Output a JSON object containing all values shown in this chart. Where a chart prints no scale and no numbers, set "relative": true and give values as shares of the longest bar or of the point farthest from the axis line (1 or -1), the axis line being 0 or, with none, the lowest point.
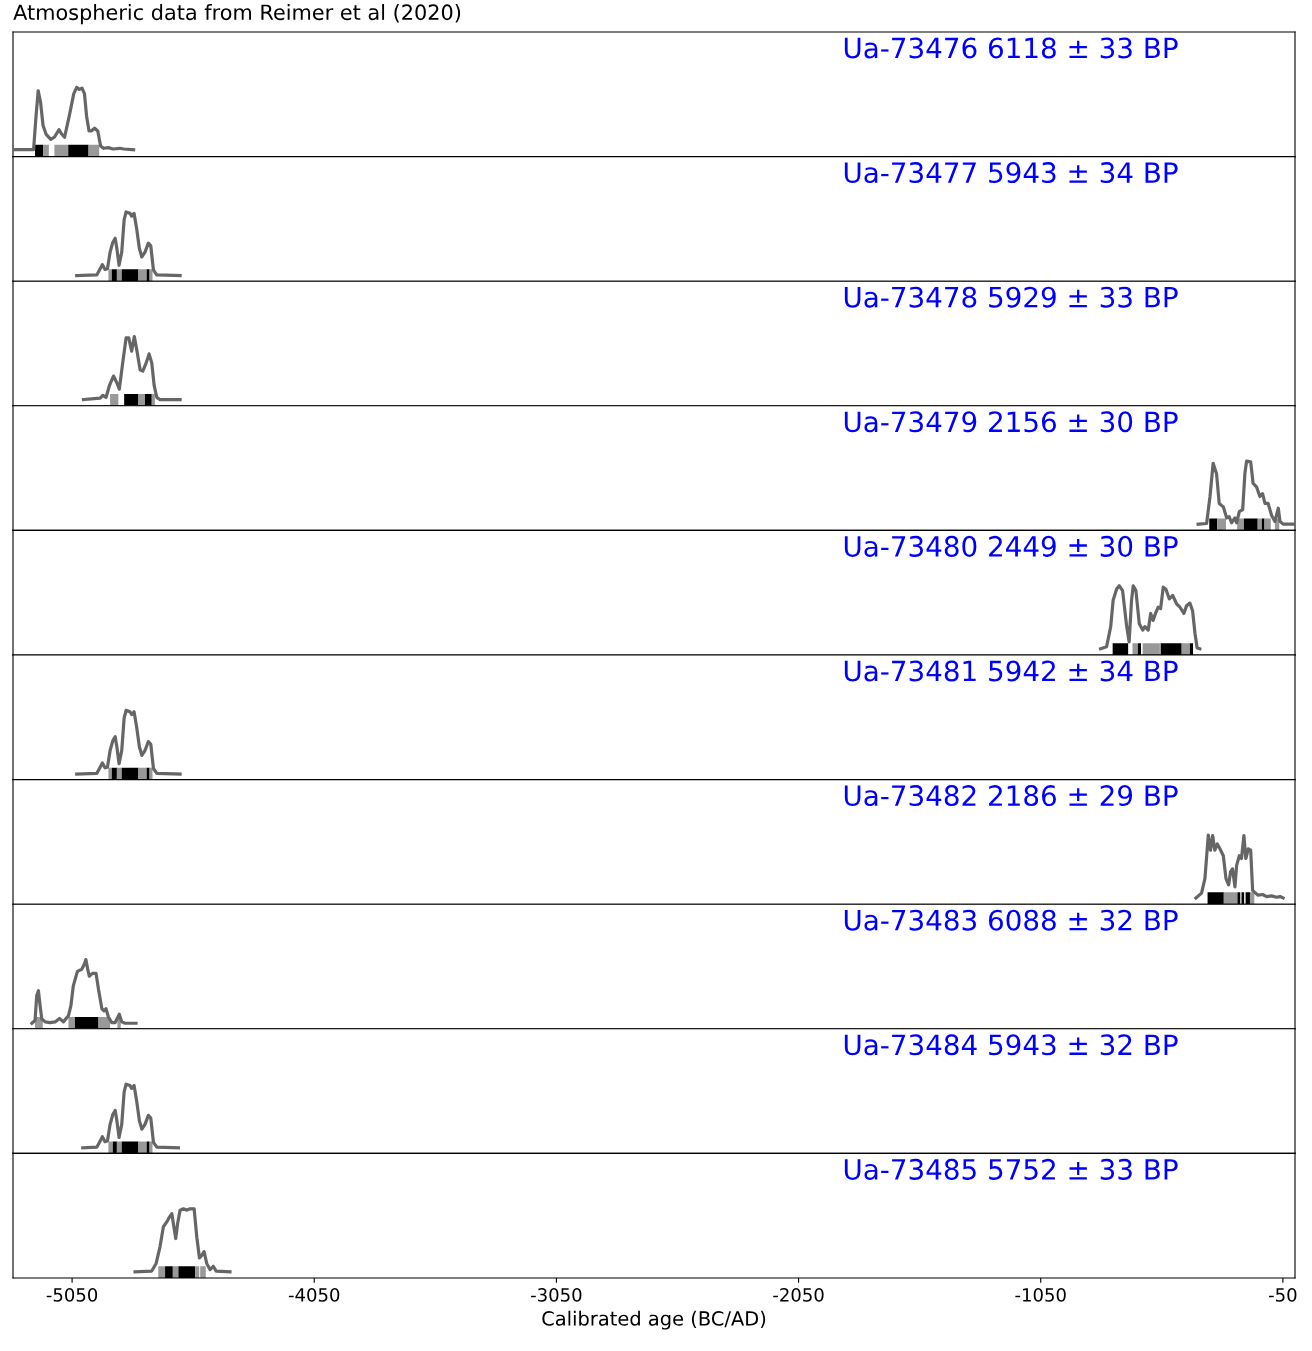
{
  "chart_data": [
    {
      "type": "line",
      "title": "Ua-73476 6118 ± 33 BP",
      "relative": true,
      "color": "#666666",
      "xlim": [
        -5294,
        0
      ],
      "tick_labels": false,
      "annotations": [
        "Atmospheric data from Reimer et al (2020)"
      ],
      "x": [
        -5290,
        -5209,
        -5199,
        -5190,
        -5180,
        -5170,
        -5157,
        -5138,
        -5123,
        -5104,
        -5094,
        -5081,
        -5062,
        -5043,
        -5031,
        -5020,
        -5009,
        -4999,
        -4990,
        -4980,
        -4971,
        -4957,
        -4944,
        -4932,
        -4919,
        -4900,
        -4881,
        -4853,
        -4837,
        -4796
      ],
      "values": [
        0.1,
        0.1,
        0.58,
        0.95,
        0.78,
        0.45,
        0.32,
        0.25,
        0.28,
        0.39,
        0.33,
        0.28,
        0.58,
        0.91,
        1.0,
        0.97,
        0.99,
        0.91,
        0.58,
        0.37,
        0.37,
        0.41,
        0.37,
        0.15,
        0.12,
        0.13,
        0.11,
        0.12,
        0.11,
        0.1
      ],
      "bands": [
        {
          "axis": "x",
          "from": -5203,
          "to": -5170,
          "color": "#000000"
        },
        {
          "axis": "x",
          "from": -5170,
          "to": -5146,
          "color": "#999999"
        },
        {
          "axis": "x",
          "from": -5123,
          "to": -5066,
          "color": "#999999"
        },
        {
          "axis": "x",
          "from": -5066,
          "to": -4982,
          "color": "#000000"
        },
        {
          "axis": "x",
          "from": -4982,
          "to": -4938,
          "color": "#999999"
        }
      ]
    },
    {
      "type": "line",
      "title": "Ua-73477 5943 ± 34 BP",
      "relative": true,
      "color": "#666666",
      "xlim": [
        -5294,
        0
      ],
      "tick_labels": false,
      "x": [
        -5031,
        -4948,
        -4934,
        -4925,
        -4914,
        -4904,
        -4893,
        -4882,
        -4872,
        -4865,
        -4856,
        -4845,
        -4835,
        -4827,
        -4811,
        -4804,
        -4794,
        -4783,
        -4772,
        -4762,
        -4749,
        -4735,
        -4725,
        -4714,
        -4700,
        -4604
      ],
      "values": [
        0.08,
        0.09,
        0.18,
        0.24,
        0.17,
        0.18,
        0.42,
        0.56,
        0.62,
        0.47,
        0.23,
        0.42,
        0.89,
        1.0,
        0.98,
        0.94,
        0.98,
        0.75,
        0.47,
        0.35,
        0.42,
        0.55,
        0.51,
        0.16,
        0.09,
        0.08
      ],
      "bands": [
        {
          "axis": "x",
          "from": -4900,
          "to": -4886,
          "color": "#999999"
        },
        {
          "axis": "x",
          "from": -4886,
          "to": -4865,
          "color": "#000000"
        },
        {
          "axis": "x",
          "from": -4865,
          "to": -4845,
          "color": "#999999"
        },
        {
          "axis": "x",
          "from": -4845,
          "to": -4776,
          "color": "#000000"
        },
        {
          "axis": "x",
          "from": -4776,
          "to": -4742,
          "color": "#999999"
        },
        {
          "axis": "x",
          "from": -4742,
          "to": -4730,
          "color": "#000000"
        },
        {
          "axis": "x",
          "from": -4730,
          "to": -4718,
          "color": "#999999"
        }
      ]
    },
    {
      "type": "line",
      "title": "Ua-73478 5929 ± 33 BP",
      "relative": true,
      "color": "#666666",
      "xlim": [
        -5294,
        0
      ],
      "tick_labels": false,
      "x": [
        -5003,
        -4934,
        -4923,
        -4910,
        -4896,
        -4879,
        -4865,
        -4855,
        -4841,
        -4827,
        -4816,
        -4804,
        -4793,
        -4783,
        -4769,
        -4758,
        -4744,
        -4732,
        -4721,
        -4711,
        -4700,
        -4687,
        -4604
      ],
      "values": [
        0.09,
        0.11,
        0.15,
        0.12,
        0.29,
        0.43,
        0.33,
        0.24,
        0.62,
        0.98,
        0.98,
        0.79,
        1.0,
        0.81,
        0.52,
        0.5,
        0.62,
        0.75,
        0.62,
        0.29,
        0.12,
        0.09,
        0.09
      ],
      "bands": [
        {
          "axis": "x",
          "from": -4893,
          "to": -4859,
          "color": "#999999"
        },
        {
          "axis": "x",
          "from": -4835,
          "to": -4776,
          "color": "#000000"
        },
        {
          "axis": "x",
          "from": -4776,
          "to": -4749,
          "color": "#999999"
        },
        {
          "axis": "x",
          "from": -4749,
          "to": -4721,
          "color": "#000000"
        },
        {
          "axis": "x",
          "from": -4721,
          "to": -4708,
          "color": "#999999"
        }
      ]
    },
    {
      "type": "line",
      "title": "Ua-73479 2156 ± 30 BP",
      "relative": true,
      "color": "#666666",
      "xlim": [
        -5294,
        0
      ],
      "tick_labels": false,
      "x": [
        -400,
        -365,
        -351,
        -338,
        -324,
        -313,
        -296,
        -282,
        -272,
        -262,
        -248,
        -241,
        -230,
        -216,
        -207,
        -200,
        -183,
        -173,
        -159,
        -145,
        -134,
        -124,
        -111,
        -97,
        -83,
        -69,
        -62,
        -49,
        -7
      ],
      "values": [
        0.09,
        0.1,
        0.49,
        0.97,
        0.82,
        0.39,
        0.34,
        0.18,
        0.2,
        0.11,
        0.18,
        0.11,
        0.27,
        0.3,
        0.82,
        1.0,
        0.99,
        0.68,
        0.63,
        0.49,
        0.53,
        0.39,
        0.39,
        0.22,
        0.13,
        0.32,
        0.13,
        0.09,
        0.09
      ],
      "bands": [
        {
          "axis": "x",
          "from": -354,
          "to": -321,
          "color": "#000000"
        },
        {
          "axis": "x",
          "from": -321,
          "to": -285,
          "color": "#999999"
        },
        {
          "axis": "x",
          "from": -239,
          "to": -211,
          "color": "#999999"
        },
        {
          "axis": "x",
          "from": -211,
          "to": -154,
          "color": "#000000"
        },
        {
          "axis": "x",
          "from": -154,
          "to": -137,
          "color": "#999999"
        },
        {
          "axis": "x",
          "from": -137,
          "to": -126,
          "color": "#000000"
        },
        {
          "axis": "x",
          "from": -126,
          "to": -100,
          "color": "#999999"
        },
        {
          "axis": "x",
          "from": -83,
          "to": -65,
          "color": "#999999"
        }
      ]
    },
    {
      "type": "line",
      "title": "Ua-73480 2449 ± 30 BP",
      "relative": true,
      "color": "#666666",
      "xlim": [
        -5294,
        0
      ],
      "tick_labels": false,
      "x": [
        -803,
        -778,
        -761,
        -751,
        -737,
        -726,
        -712,
        -695,
        -685,
        -675,
        -668,
        -657,
        -643,
        -629,
        -620,
        -606,
        -596,
        -586,
        -574,
        -565,
        -555,
        -544,
        -533,
        -519,
        -505,
        -489,
        -475,
        -459,
        -448,
        -434,
        -423,
        -413,
        -404,
        -393
      ],
      "values": [
        0.09,
        0.12,
        0.41,
        0.79,
        0.95,
        1.0,
        0.93,
        0.41,
        0.19,
        0.79,
        1.0,
        0.93,
        0.45,
        0.36,
        0.41,
        0.36,
        0.6,
        0.5,
        0.62,
        0.69,
        0.67,
        0.98,
        0.95,
        0.81,
        0.86,
        0.74,
        0.69,
        0.6,
        0.71,
        0.75,
        0.64,
        0.31,
        0.1,
        0.09
      ],
      "bands": [
        {
          "axis": "x",
          "from": -753,
          "to": -689,
          "color": "#000000"
        },
        {
          "axis": "x",
          "from": -671,
          "to": -652,
          "color": "#999999"
        },
        {
          "axis": "x",
          "from": -650,
          "to": -636,
          "color": "#000000"
        },
        {
          "axis": "x",
          "from": -629,
          "to": -558,
          "color": "#999999"
        },
        {
          "axis": "x",
          "from": -555,
          "to": -468,
          "color": "#000000"
        },
        {
          "axis": "x",
          "from": -468,
          "to": -434,
          "color": "#999999"
        },
        {
          "axis": "x",
          "from": -434,
          "to": -421,
          "color": "#000000"
        }
      ]
    },
    {
      "type": "line",
      "title": "Ua-73481 5942 ± 34 BP",
      "relative": true,
      "color": "#666666",
      "xlim": [
        -5294,
        0
      ],
      "tick_labels": false,
      "x": [
        -5031,
        -4948,
        -4934,
        -4925,
        -4914,
        -4904,
        -4893,
        -4882,
        -4872,
        -4865,
        -4856,
        -4845,
        -4835,
        -4827,
        -4811,
        -4804,
        -4794,
        -4783,
        -4772,
        -4762,
        -4749,
        -4735,
        -4725,
        -4714,
        -4700,
        -4604
      ],
      "values": [
        0.08,
        0.09,
        0.18,
        0.24,
        0.17,
        0.18,
        0.42,
        0.56,
        0.62,
        0.47,
        0.23,
        0.42,
        0.89,
        1.0,
        0.98,
        0.94,
        0.98,
        0.75,
        0.47,
        0.35,
        0.42,
        0.55,
        0.51,
        0.16,
        0.09,
        0.08
      ],
      "bands": [
        {
          "axis": "x",
          "from": -4900,
          "to": -4886,
          "color": "#999999"
        },
        {
          "axis": "x",
          "from": -4886,
          "to": -4865,
          "color": "#000000"
        },
        {
          "axis": "x",
          "from": -4865,
          "to": -4845,
          "color": "#999999"
        },
        {
          "axis": "x",
          "from": -4845,
          "to": -4776,
          "color": "#000000"
        },
        {
          "axis": "x",
          "from": -4776,
          "to": -4742,
          "color": "#999999"
        },
        {
          "axis": "x",
          "from": -4742,
          "to": -4730,
          "color": "#000000"
        },
        {
          "axis": "x",
          "from": -4730,
          "to": -4718,
          "color": "#999999"
        }
      ]
    },
    {
      "type": "line",
      "title": "Ua-73482 2186 ± 29 BP",
      "relative": true,
      "color": "#666666",
      "xlim": [
        -5294,
        0
      ],
      "tick_labels": false,
      "x": [
        -409,
        -386,
        -372,
        -358,
        -349,
        -340,
        -331,
        -321,
        -310,
        -296,
        -285,
        -274,
        -266,
        -258,
        -248,
        -241,
        -230,
        -221,
        -211,
        -203,
        -193,
        -183,
        -175,
        -166,
        -152,
        -134,
        -117,
        -97,
        -76,
        -62,
        -49
      ],
      "values": [
        0.09,
        0.16,
        0.37,
        1.0,
        0.78,
        0.99,
        0.78,
        0.87,
        0.8,
        0.7,
        0.37,
        0.28,
        0.47,
        0.51,
        0.25,
        0.56,
        0.7,
        0.66,
        0.99,
        0.66,
        0.8,
        0.78,
        0.2,
        0.17,
        0.13,
        0.14,
        0.11,
        0.12,
        0.1,
        0.11,
        0.09
      ],
      "bands": [
        {
          "axis": "x",
          "from": -361,
          "to": -294,
          "color": "#000000"
        },
        {
          "axis": "x",
          "from": -294,
          "to": -235,
          "color": "#999999"
        },
        {
          "axis": "x",
          "from": -237,
          "to": -226,
          "color": "#000000"
        },
        {
          "axis": "x",
          "from": -221,
          "to": -210,
          "color": "#000000"
        },
        {
          "axis": "x",
          "from": -204,
          "to": -186,
          "color": "#000000"
        },
        {
          "axis": "x",
          "from": -186,
          "to": -168,
          "color": "#999999"
        }
      ]
    },
    {
      "type": "line",
      "title": "Ua-73483 6088 ± 32 BP",
      "relative": true,
      "color": "#666666",
      "xlim": [
        -5294,
        0
      ],
      "tick_labels": false,
      "x": [
        -5216,
        -5203,
        -5196,
        -5189,
        -5182,
        -5175,
        -5161,
        -5141,
        -5120,
        -5102,
        -5086,
        -5065,
        -5055,
        -5045,
        -5028,
        -5010,
        -5000,
        -4993,
        -4985,
        -4979,
        -4966,
        -4951,
        -4941,
        -4927,
        -4918,
        -4910,
        -4900,
        -4886,
        -4872,
        -4855,
        -4845,
        -4831,
        -4786
      ],
      "values": [
        0.08,
        0.12,
        0.48,
        0.55,
        0.33,
        0.14,
        0.1,
        0.09,
        0.1,
        0.15,
        0.1,
        0.19,
        0.33,
        0.62,
        0.83,
        0.86,
        0.93,
        1.0,
        0.85,
        0.76,
        0.8,
        0.8,
        0.57,
        0.29,
        0.26,
        0.29,
        0.17,
        0.09,
        0.09,
        0.21,
        0.1,
        0.08,
        0.08
      ],
      "bands": [
        {
          "axis": "x",
          "from": -5203,
          "to": -5171,
          "color": "#999999"
        },
        {
          "axis": "x",
          "from": -5065,
          "to": -5038,
          "color": "#999999"
        },
        {
          "axis": "x",
          "from": -5038,
          "to": -4941,
          "color": "#000000"
        },
        {
          "axis": "x",
          "from": -4941,
          "to": -4893,
          "color": "#999999"
        },
        {
          "axis": "x",
          "from": -4863,
          "to": -4849,
          "color": "#999999"
        }
      ]
    },
    {
      "type": "line",
      "title": "Ua-73484 5943 ± 32 BP",
      "relative": true,
      "color": "#666666",
      "xlim": [
        -5294,
        0
      ],
      "tick_labels": false,
      "x": [
        -5006,
        -4948,
        -4934,
        -4925,
        -4914,
        -4904,
        -4893,
        -4882,
        -4872,
        -4865,
        -4856,
        -4845,
        -4835,
        -4827,
        -4811,
        -4804,
        -4794,
        -4783,
        -4772,
        -4762,
        -4749,
        -4735,
        -4725,
        -4714,
        -4700,
        -4611
      ],
      "values": [
        0.08,
        0.09,
        0.18,
        0.24,
        0.17,
        0.18,
        0.42,
        0.56,
        0.62,
        0.47,
        0.23,
        0.42,
        0.89,
        1.0,
        0.98,
        0.94,
        0.98,
        0.75,
        0.47,
        0.35,
        0.42,
        0.55,
        0.51,
        0.16,
        0.09,
        0.08
      ],
      "bands": [
        {
          "axis": "x",
          "from": -4900,
          "to": -4882,
          "color": "#999999"
        },
        {
          "axis": "x",
          "from": -4882,
          "to": -4865,
          "color": "#000000"
        },
        {
          "axis": "x",
          "from": -4865,
          "to": -4845,
          "color": "#999999"
        },
        {
          "axis": "x",
          "from": -4845,
          "to": -4776,
          "color": "#000000"
        },
        {
          "axis": "x",
          "from": -4776,
          "to": -4742,
          "color": "#999999"
        },
        {
          "axis": "x",
          "from": -4742,
          "to": -4730,
          "color": "#000000"
        },
        {
          "axis": "x",
          "from": -4730,
          "to": -4718,
          "color": "#999999"
        }
      ]
    },
    {
      "type": "line",
      "title": "Ua-73485 5752 ± 33 BP",
      "relative": true,
      "color": "#666666",
      "xlim": [
        -5294,
        0
      ],
      "xticks": [
        -5050,
        -4050,
        -3050,
        -2050,
        -1050,
        -50
      ],
      "xlabel": "Calibrated age (BC/AD)",
      "tick_labels": "x",
      "x": [
        -4790,
        -4721,
        -4703,
        -4687,
        -4673,
        -4659,
        -4648,
        -4638,
        -4632,
        -4622,
        -4614,
        -4604,
        -4590,
        -4576,
        -4563,
        -4546,
        -4535,
        -4524,
        -4514,
        -4505,
        -4494,
        -4480,
        -4467,
        -4455,
        -4398
      ],
      "values": [
        0.09,
        0.1,
        0.21,
        0.45,
        0.74,
        0.81,
        0.88,
        0.93,
        0.79,
        0.57,
        0.79,
        0.98,
        1.0,
        0.98,
        1.0,
        1.0,
        0.59,
        0.29,
        0.33,
        0.38,
        0.21,
        0.12,
        0.17,
        0.1,
        0.09
      ],
      "bands": [
        {
          "axis": "x",
          "from": -4694,
          "to": -4666,
          "color": "#999999"
        },
        {
          "axis": "x",
          "from": -4666,
          "to": -4634,
          "color": "#000000"
        },
        {
          "axis": "x",
          "from": -4634,
          "to": -4611,
          "color": "#999999"
        },
        {
          "axis": "x",
          "from": -4611,
          "to": -4542,
          "color": "#000000"
        },
        {
          "axis": "x",
          "from": -4542,
          "to": -4525,
          "color": "#999999"
        },
        {
          "axis": "x",
          "from": -4521,
          "to": -4498,
          "color": "#999999"
        }
      ]
    }
  ]
}
